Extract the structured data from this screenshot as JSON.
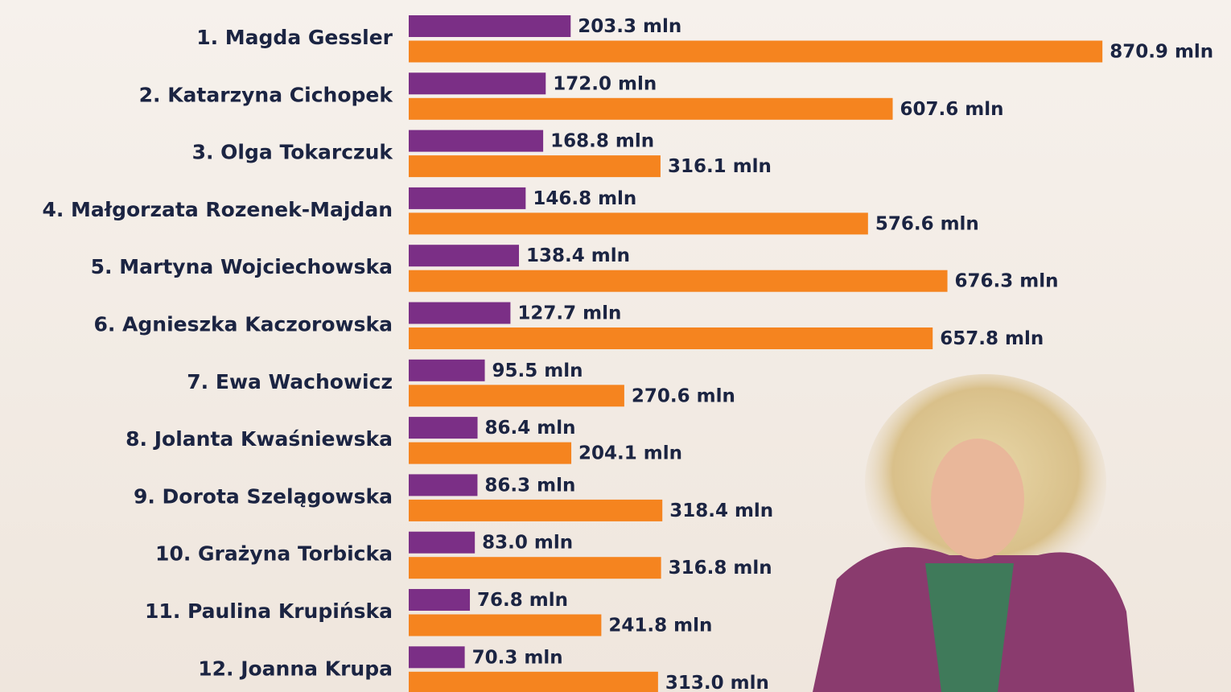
{
  "chart_data": {
    "type": "bar",
    "orientation": "horizontal",
    "categories": [
      "1. Magda Gessler",
      "2. Katarzyna Cichopek",
      "3. Olga Tokarczuk",
      "4. Małgorzata Rozenek-Majdan",
      "5. Martyna Wojciechowska",
      "6. Agnieszka Kaczorowska",
      "7. Ewa Wachowicz",
      "8. Jolanta Kwaśniewska",
      "9. Dorota Szelągowska",
      "10. Grażyna Torbicka",
      "11. Paulina Krupińska",
      "12. Joanna Krupa"
    ],
    "series": [
      {
        "color": "#7b2f86",
        "values": [
          203.3,
          172.0,
          168.8,
          146.8,
          138.4,
          127.7,
          95.5,
          86.4,
          86.3,
          83.0,
          76.8,
          70.3
        ],
        "value_labels": [
          "203.3 mln",
          "172.0 mln",
          "168.8 mln",
          "146.8 mln",
          "138.4 mln",
          "127.7 mln",
          "95.5 mln",
          "86.4 mln",
          "86.3 mln",
          "83.0 mln",
          "76.8 mln",
          "70.3 mln"
        ]
      },
      {
        "color": "#f5841f",
        "values": [
          870.9,
          607.6,
          316.1,
          576.6,
          676.3,
          657.8,
          270.6,
          204.1,
          318.4,
          316.8,
          241.8,
          313.0
        ],
        "value_labels": [
          "870.9 mln",
          "607.6 mln",
          "316.1 mln",
          "576.6 mln",
          "676.3 mln",
          "657.8 mln",
          "270.6 mln",
          "204.1 mln",
          "318.4 mln",
          "316.8 mln",
          "241.8 mln",
          "313.0 mln"
        ]
      }
    ]
  }
}
